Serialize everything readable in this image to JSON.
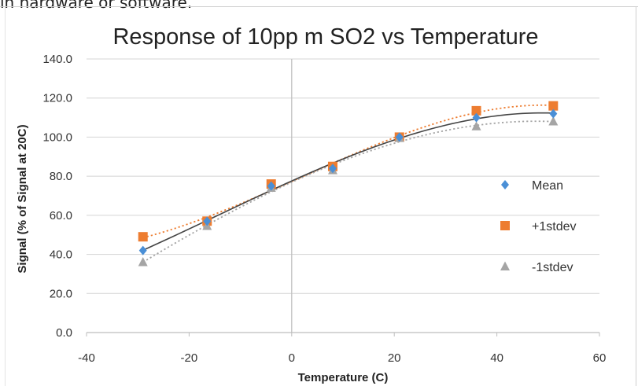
{
  "header_fragment": "in hardware or software.",
  "chart_data": {
    "type": "scatter",
    "title": "Response of 10pp m SO2 vs Temperature",
    "xlabel": "Temperature (C)",
    "ylabel": "Signal (% of Signal at 20C)",
    "xlim": [
      -40,
      60
    ],
    "ylim": [
      0,
      140
    ],
    "x_ticks": [
      "-40",
      "-20",
      "0",
      "20",
      "40",
      "60"
    ],
    "y_ticks": [
      "0.0",
      "20.0",
      "40.0",
      "60.0",
      "80.0",
      "100.0",
      "120.0",
      "140.0"
    ],
    "grid": "horizontal",
    "legend_position": "right",
    "series": [
      {
        "name": "Mean",
        "marker": "diamond",
        "color": "#4a8fd6",
        "trend_color": "#444444",
        "trend_style": "solid",
        "x": [
          -29,
          -16.5,
          -4,
          8,
          21,
          36,
          51
        ],
        "y": [
          42,
          57,
          75,
          84,
          100,
          110,
          112
        ]
      },
      {
        "name": "+1stdev",
        "marker": "square",
        "color": "#ed7d31",
        "trend_color": "#ed7d31",
        "trend_style": "dotted",
        "x": [
          -29,
          -16.5,
          -4,
          8,
          21,
          36,
          51
        ],
        "y": [
          49,
          57,
          76,
          85,
          100,
          113.5,
          116
        ]
      },
      {
        "name": "-1stdev",
        "marker": "triangle",
        "color": "#a5a5a5",
        "trend_color": "#a5a5a5",
        "trend_style": "dotted",
        "x": [
          -29,
          -16.5,
          -4,
          8,
          21,
          36,
          51
        ],
        "y": [
          36,
          54.5,
          74,
          83,
          99.5,
          105.5,
          108
        ]
      }
    ]
  }
}
